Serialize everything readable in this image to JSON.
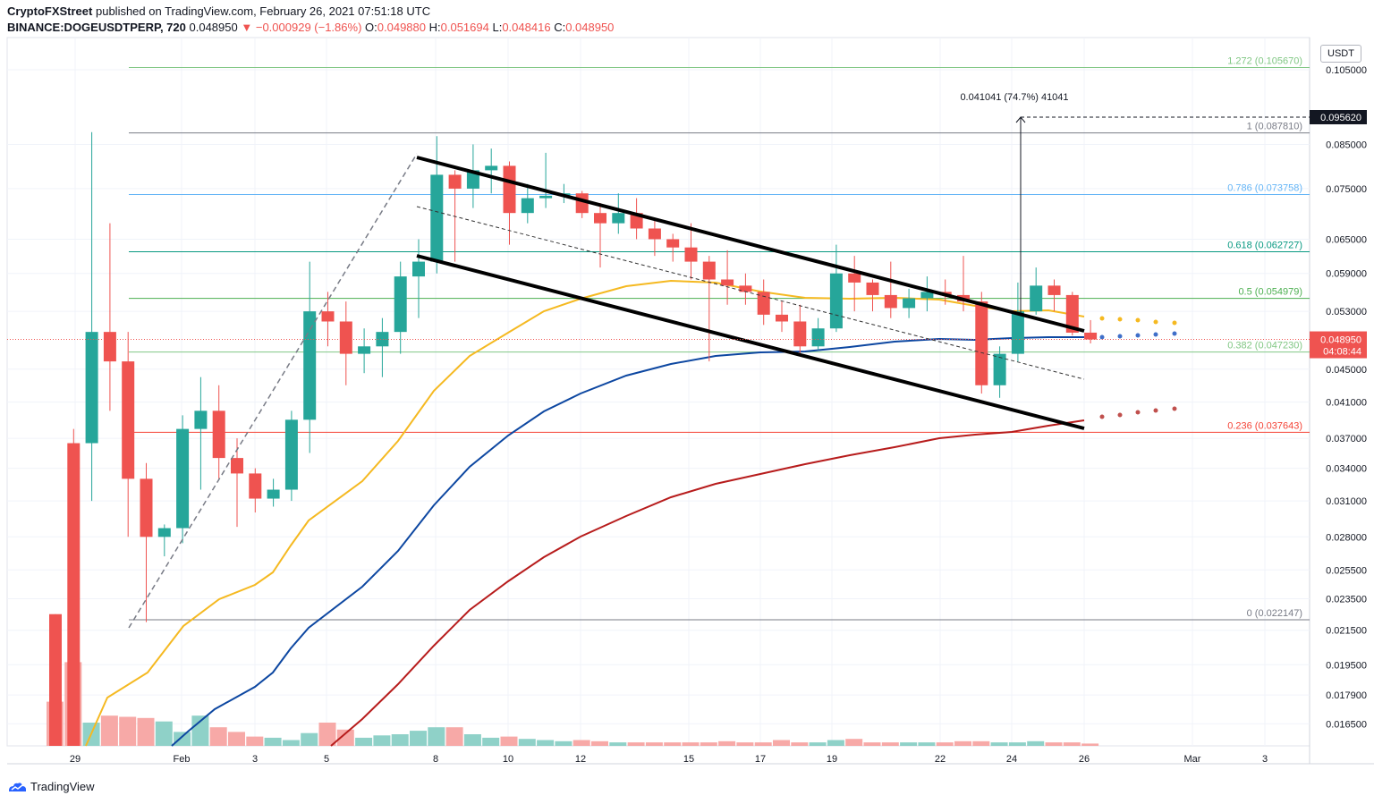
{
  "header": {
    "publisher": "CryptoFXStreet",
    "published_text": "published on TradingView.com, February 26, 2021 07:51:18 UTC",
    "symbol": "BINANCE:DOGEUSDTPERP, 720",
    "last": "0.048950",
    "change": "−0.000929 (−1.86%)",
    "o_label": "O:",
    "o_value": "0.049880",
    "h_label": "H:",
    "h_value": "0.051694",
    "l_label": "L:",
    "l_value": "0.048416",
    "c_label": "C:",
    "c_value": "0.048950"
  },
  "currency_badge": "USDT",
  "footer": {
    "brand": "TradingView"
  },
  "colors": {
    "bull": "#26a69a",
    "bear": "#ef5350",
    "bull_vol": "#8fd1c8",
    "bear_vol": "#f7a9a7",
    "ma_fast": "#f5b921",
    "ma_mid": "#0d47a1",
    "ma_slow": "#b71c1c"
  },
  "chart_data": {
    "type": "candlestick",
    "y_scale": "log",
    "ylim": [
      0.0155,
      0.115
    ],
    "x_labels": [
      "29",
      "Feb",
      "3",
      "5",
      "8",
      "10",
      "12",
      "15",
      "17",
      "19",
      "22",
      "24",
      "26",
      "Mar",
      "3"
    ],
    "y_ticks": [
      "0.105000",
      "0.085000",
      "0.075000",
      "0.065000",
      "0.059000",
      "0.053000",
      "0.045000",
      "0.041000",
      "0.037000",
      "0.034000",
      "0.031000",
      "0.028000",
      "0.025500",
      "0.023500",
      "0.021500",
      "0.019500",
      "0.017900",
      "0.016500"
    ],
    "fib_levels": [
      {
        "label": "1.272",
        "value": 0.10567,
        "text": "(0.105670)",
        "color": "#81c784"
      },
      {
        "label": "1",
        "value": 0.08781,
        "text": "(0.087810)",
        "color": "#787b86"
      },
      {
        "label": "0.786",
        "value": 0.073758,
        "text": "(0.073758)",
        "color": "#64b5f6"
      },
      {
        "label": "0.618",
        "value": 0.062727,
        "text": "(0.062727)",
        "color": "#089981"
      },
      {
        "label": "0.5",
        "value": 0.054979,
        "text": "(0.054979)",
        "color": "#4caf50"
      },
      {
        "label": "0.382",
        "value": 0.04723,
        "text": "(0.047230)",
        "color": "#81c784"
      },
      {
        "label": "0.236",
        "value": 0.037643,
        "text": "(0.037643)",
        "color": "#f44336"
      },
      {
        "label": "0",
        "value": 0.022147,
        "text": "(0.022147)",
        "color": "#787b86"
      }
    ],
    "target_label": "0.041041 (74.7%) 41041",
    "target_price": "0.095620",
    "last_price": "0.048950",
    "countdown": "04:08:44",
    "candles": [
      {
        "o": 0.0225,
        "h": 0.0225,
        "l": 0.0155,
        "c": 0.0155
      },
      {
        "o": 0.0365,
        "h": 0.038,
        "l": 0.0155,
        "c": 0.0155
      },
      {
        "o": 0.0365,
        "h": 0.088,
        "l": 0.031,
        "c": 0.05
      },
      {
        "o": 0.05,
        "h": 0.068,
        "l": 0.04,
        "c": 0.046
      },
      {
        "o": 0.046,
        "h": 0.05,
        "l": 0.028,
        "c": 0.033
      },
      {
        "o": 0.033,
        "h": 0.0345,
        "l": 0.022,
        "c": 0.028
      },
      {
        "o": 0.028,
        "h": 0.029,
        "l": 0.0265,
        "c": 0.0287
      },
      {
        "o": 0.0287,
        "h": 0.0395,
        "l": 0.0275,
        "c": 0.038
      },
      {
        "o": 0.038,
        "h": 0.044,
        "l": 0.032,
        "c": 0.04
      },
      {
        "o": 0.04,
        "h": 0.043,
        "l": 0.033,
        "c": 0.035
      },
      {
        "o": 0.035,
        "h": 0.037,
        "l": 0.0288,
        "c": 0.0335
      },
      {
        "o": 0.0335,
        "h": 0.034,
        "l": 0.03,
        "c": 0.0312
      },
      {
        "o": 0.0312,
        "h": 0.033,
        "l": 0.0305,
        "c": 0.032
      },
      {
        "o": 0.032,
        "h": 0.04,
        "l": 0.031,
        "c": 0.039
      },
      {
        "o": 0.039,
        "h": 0.061,
        "l": 0.0355,
        "c": 0.053
      },
      {
        "o": 0.053,
        "h": 0.056,
        "l": 0.048,
        "c": 0.0515
      },
      {
        "o": 0.0515,
        "h": 0.0545,
        "l": 0.043,
        "c": 0.047
      },
      {
        "o": 0.047,
        "h": 0.0505,
        "l": 0.0445,
        "c": 0.048
      },
      {
        "o": 0.048,
        "h": 0.052,
        "l": 0.044,
        "c": 0.05
      },
      {
        "o": 0.05,
        "h": 0.061,
        "l": 0.047,
        "c": 0.0585
      },
      {
        "o": 0.0585,
        "h": 0.065,
        "l": 0.052,
        "c": 0.061
      },
      {
        "o": 0.061,
        "h": 0.087,
        "l": 0.059,
        "c": 0.078
      },
      {
        "o": 0.078,
        "h": 0.079,
        "l": 0.061,
        "c": 0.075
      },
      {
        "o": 0.075,
        "h": 0.085,
        "l": 0.071,
        "c": 0.079
      },
      {
        "o": 0.079,
        "h": 0.084,
        "l": 0.074,
        "c": 0.08
      },
      {
        "o": 0.08,
        "h": 0.081,
        "l": 0.064,
        "c": 0.07
      },
      {
        "o": 0.07,
        "h": 0.076,
        "l": 0.068,
        "c": 0.073
      },
      {
        "o": 0.073,
        "h": 0.083,
        "l": 0.071,
        "c": 0.0735
      },
      {
        "o": 0.0735,
        "h": 0.076,
        "l": 0.072,
        "c": 0.074
      },
      {
        "o": 0.074,
        "h": 0.0745,
        "l": 0.069,
        "c": 0.07
      },
      {
        "o": 0.07,
        "h": 0.072,
        "l": 0.06,
        "c": 0.068
      },
      {
        "o": 0.068,
        "h": 0.074,
        "l": 0.066,
        "c": 0.07
      },
      {
        "o": 0.07,
        "h": 0.073,
        "l": 0.065,
        "c": 0.067
      },
      {
        "o": 0.067,
        "h": 0.069,
        "l": 0.062,
        "c": 0.065
      },
      {
        "o": 0.065,
        "h": 0.066,
        "l": 0.061,
        "c": 0.0635
      },
      {
        "o": 0.0635,
        "h": 0.068,
        "l": 0.058,
        "c": 0.061
      },
      {
        "o": 0.061,
        "h": 0.062,
        "l": 0.046,
        "c": 0.058
      },
      {
        "o": 0.058,
        "h": 0.063,
        "l": 0.054,
        "c": 0.057
      },
      {
        "o": 0.057,
        "h": 0.059,
        "l": 0.054,
        "c": 0.056
      },
      {
        "o": 0.056,
        "h": 0.058,
        "l": 0.051,
        "c": 0.0525
      },
      {
        "o": 0.0525,
        "h": 0.0545,
        "l": 0.05,
        "c": 0.0515
      },
      {
        "o": 0.0515,
        "h": 0.054,
        "l": 0.047,
        "c": 0.048
      },
      {
        "o": 0.048,
        "h": 0.052,
        "l": 0.0475,
        "c": 0.0505
      },
      {
        "o": 0.0505,
        "h": 0.064,
        "l": 0.05,
        "c": 0.059
      },
      {
        "o": 0.059,
        "h": 0.062,
        "l": 0.053,
        "c": 0.0575
      },
      {
        "o": 0.0575,
        "h": 0.058,
        "l": 0.053,
        "c": 0.0555
      },
      {
        "o": 0.0555,
        "h": 0.061,
        "l": 0.052,
        "c": 0.0535
      },
      {
        "o": 0.0535,
        "h": 0.0565,
        "l": 0.052,
        "c": 0.055
      },
      {
        "o": 0.055,
        "h": 0.0585,
        "l": 0.053,
        "c": 0.056
      },
      {
        "o": 0.056,
        "h": 0.058,
        "l": 0.054,
        "c": 0.0555
      },
      {
        "o": 0.0555,
        "h": 0.062,
        "l": 0.053,
        "c": 0.0545
      },
      {
        "o": 0.0545,
        "h": 0.056,
        "l": 0.042,
        "c": 0.043
      },
      {
        "o": 0.043,
        "h": 0.048,
        "l": 0.0415,
        "c": 0.047
      },
      {
        "o": 0.047,
        "h": 0.0575,
        "l": 0.046,
        "c": 0.053
      },
      {
        "o": 0.053,
        "h": 0.06,
        "l": 0.0525,
        "c": 0.057
      },
      {
        "o": 0.057,
        "h": 0.058,
        "l": 0.053,
        "c": 0.0555
      },
      {
        "o": 0.0555,
        "h": 0.056,
        "l": 0.0495,
        "c": 0.0499
      },
      {
        "o": 0.0499,
        "h": 0.0517,
        "l": 0.0484,
        "c": 0.04895
      }
    ],
    "volumes": [
      0.38,
      0.72,
      0.2,
      0.26,
      0.25,
      0.24,
      0.21,
      0.12,
      0.26,
      0.16,
      0.12,
      0.08,
      0.07,
      0.05,
      0.11,
      0.2,
      0.14,
      0.07,
      0.09,
      0.1,
      0.13,
      0.16,
      0.16,
      0.1,
      0.07,
      0.08,
      0.06,
      0.05,
      0.04,
      0.05,
      0.04,
      0.03,
      0.03,
      0.03,
      0.03,
      0.03,
      0.03,
      0.04,
      0.03,
      0.03,
      0.05,
      0.03,
      0.03,
      0.05,
      0.06,
      0.03,
      0.03,
      0.03,
      0.03,
      0.03,
      0.04,
      0.04,
      0.03,
      0.03,
      0.04,
      0.03,
      0.03,
      0.02
    ]
  }
}
